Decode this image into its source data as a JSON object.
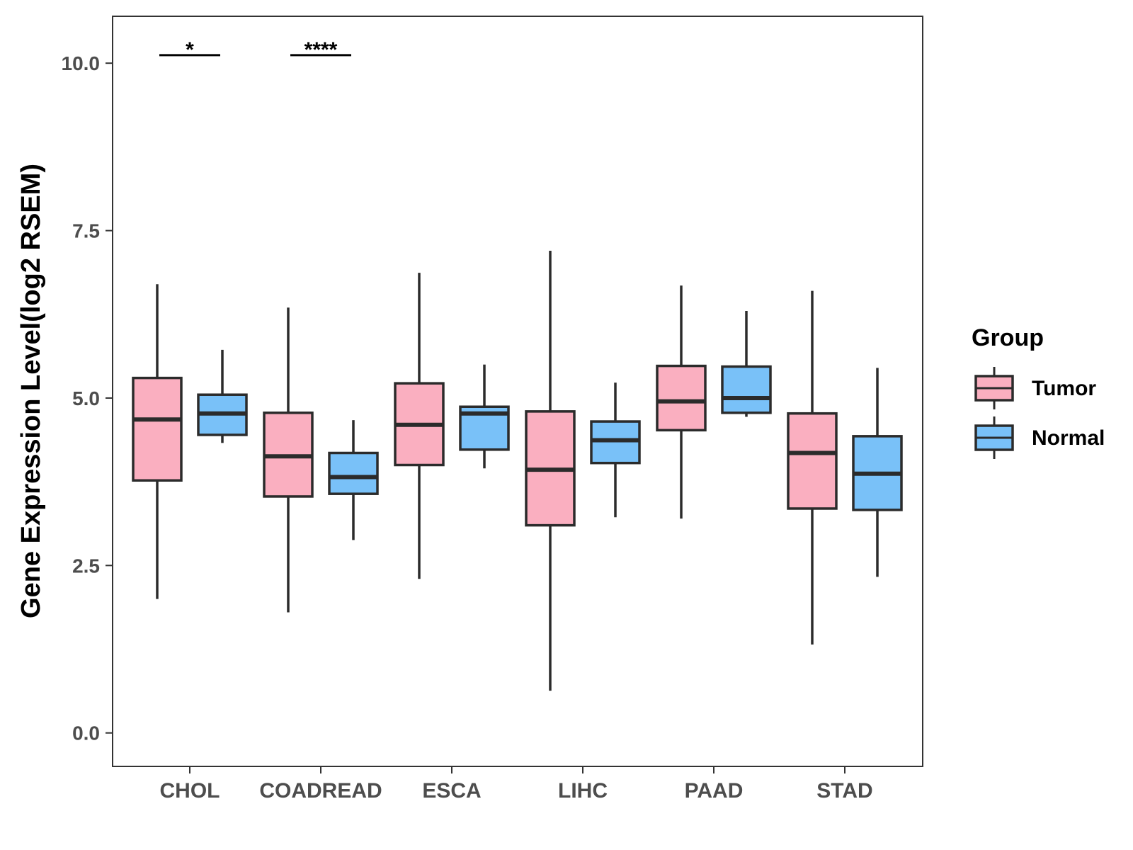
{
  "chart_data": {
    "type": "boxplot",
    "title": "",
    "xlabel": "",
    "ylabel": "Gene Expression Level(log2 RSEM)",
    "ylim": [
      -0.5,
      10.7
    ],
    "yticks": [
      0.0,
      2.5,
      5.0,
      7.5,
      10.0
    ],
    "ytick_labels": [
      "0.0",
      "2.5",
      "5.0",
      "7.5",
      "10.0"
    ],
    "categories": [
      "CHOL",
      "COADREAD",
      "ESCA",
      "LIHC",
      "PAAD",
      "STAD"
    ],
    "legend": {
      "title": "Group",
      "position": "right",
      "entries": [
        {
          "name": "Tumor",
          "color": "#FAAFC0"
        },
        {
          "name": "Normal",
          "color": "#79C1F8"
        }
      ]
    },
    "series": [
      {
        "name": "Tumor",
        "color": "#FAAFC0",
        "boxes": [
          {
            "category": "CHOL",
            "min": 2.0,
            "q1": 3.77,
            "median": 4.68,
            "q3": 5.3,
            "max": 6.7
          },
          {
            "category": "COADREAD",
            "min": 1.8,
            "q1": 3.53,
            "median": 4.13,
            "q3": 4.78,
            "max": 6.35
          },
          {
            "category": "ESCA",
            "min": 2.3,
            "q1": 4.0,
            "median": 4.6,
            "q3": 5.22,
            "max": 6.87
          },
          {
            "category": "LIHC",
            "min": 0.63,
            "q1": 3.1,
            "median": 3.93,
            "q3": 4.8,
            "max": 7.2
          },
          {
            "category": "PAAD",
            "min": 3.2,
            "q1": 4.52,
            "median": 4.95,
            "q3": 5.48,
            "max": 6.68
          },
          {
            "category": "STAD",
            "min": 1.32,
            "q1": 3.35,
            "median": 4.18,
            "q3": 4.77,
            "max": 6.6
          }
        ]
      },
      {
        "name": "Normal",
        "color": "#79C1F8",
        "boxes": [
          {
            "category": "CHOL",
            "min": 4.33,
            "q1": 4.45,
            "median": 4.77,
            "q3": 5.05,
            "max": 5.72
          },
          {
            "category": "COADREAD",
            "min": 2.88,
            "q1": 3.57,
            "median": 3.82,
            "q3": 4.18,
            "max": 4.67
          },
          {
            "category": "ESCA",
            "min": 3.95,
            "q1": 4.23,
            "median": 4.77,
            "q3": 4.87,
            "max": 5.5
          },
          {
            "category": "LIHC",
            "min": 3.22,
            "q1": 4.03,
            "median": 4.37,
            "q3": 4.65,
            "max": 5.23
          },
          {
            "category": "PAAD",
            "min": 4.72,
            "q1": 4.78,
            "median": 5.0,
            "q3": 5.47,
            "max": 6.3
          },
          {
            "category": "STAD",
            "min": 2.33,
            "q1": 3.33,
            "median": 3.87,
            "q3": 4.43,
            "max": 5.45
          }
        ]
      }
    ],
    "annotations": [
      {
        "category": "CHOL",
        "label": "*",
        "y": 10.12
      },
      {
        "category": "COADREAD",
        "label": "****",
        "y": 10.12
      }
    ]
  }
}
